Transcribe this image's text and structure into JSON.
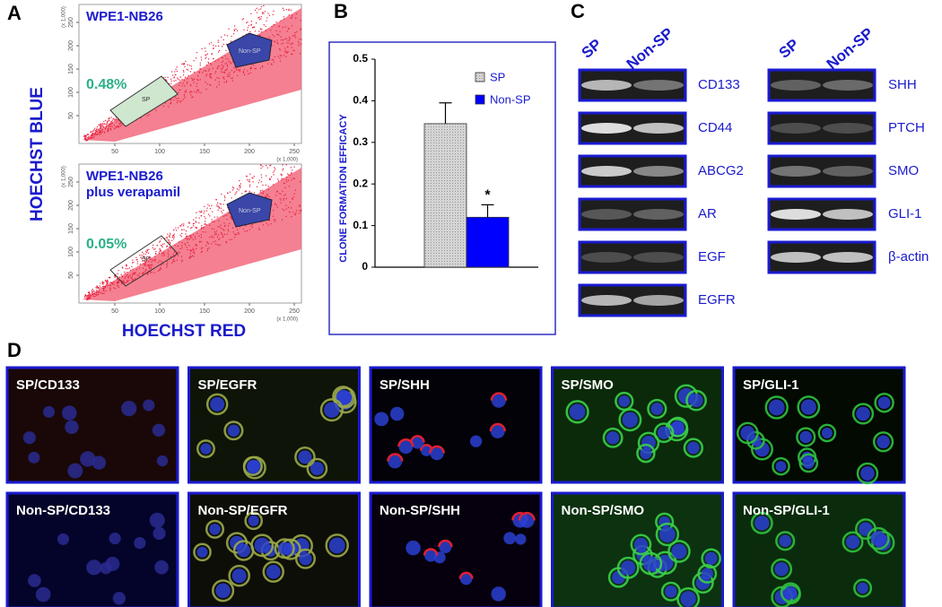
{
  "panel_labels": {
    "a": "A",
    "b": "B",
    "c": "C",
    "d": "D"
  },
  "flow": {
    "y_label": "HOECHST BLUE",
    "x_label": "HOECHST RED",
    "axis_scale": "(x 1,000)",
    "ticks": [
      50,
      100,
      150,
      200,
      250
    ],
    "plots": [
      {
        "title_lines": [
          "WPE1-NB26"
        ],
        "sp_percent": "0.48%",
        "sp_gate": "SP",
        "non_sp_gate": "Non-SP"
      },
      {
        "title_lines": [
          "WPE1-NB26",
          "plus verapamil"
        ],
        "sp_percent": "0.05%",
        "sp_gate": "SP",
        "non_sp_gate": "Non-SP"
      }
    ]
  },
  "chart_data": {
    "type": "bar",
    "y_label": "CLONE FORMATION EFFICACY",
    "series": [
      {
        "name": "SP",
        "color": "#d4d4d4",
        "values": [
          0.345
        ],
        "errors": [
          0.05
        ]
      },
      {
        "name": "Non-SP",
        "color": "#0000ff",
        "values": [
          0.12
        ],
        "errors": [
          0.03
        ]
      }
    ],
    "ylim": [
      0,
      0.5
    ],
    "yticks": [
      0,
      0.1,
      0.2,
      0.3,
      0.4,
      0.5
    ],
    "annotation": "*"
  },
  "gel": {
    "lane_headers": [
      "SP",
      "Non-SP"
    ],
    "left_genes": [
      "CD133",
      "CD44",
      "ABCG2",
      "AR",
      "EGF",
      "EGFR"
    ],
    "right_genes": [
      "SHH",
      "PTCH",
      "SMO",
      "GLI-1",
      "β-actin"
    ]
  },
  "microscopy": {
    "rows": [
      [
        "SP/CD133",
        "SP/EGFR",
        "SP/SHH",
        "SP/SMO",
        "SP/GLI-1"
      ],
      [
        "Non-SP/CD133",
        "Non-SP/EGFR",
        "Non-SP/SHH",
        "Non-SP/SMO",
        "Non-SP/GLI-1"
      ]
    ]
  }
}
